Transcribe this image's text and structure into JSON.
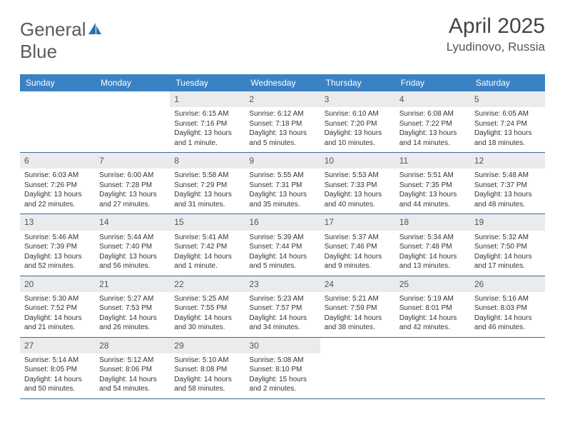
{
  "logo": {
    "word1": "General",
    "word2": "Blue"
  },
  "title": "April 2025",
  "location": "Lyudinovo, Russia",
  "colors": {
    "header_bg": "#3b82c4",
    "header_text": "#ffffff",
    "daynum_bg": "#e9ebed",
    "border": "#3b6a9a",
    "logo_blue": "#2f6fab"
  },
  "day_names": [
    "Sunday",
    "Monday",
    "Tuesday",
    "Wednesday",
    "Thursday",
    "Friday",
    "Saturday"
  ],
  "weeks": [
    [
      null,
      null,
      {
        "n": "1",
        "sr": "Sunrise: 6:15 AM",
        "ss": "Sunset: 7:16 PM",
        "d1": "Daylight: 13 hours",
        "d2": "and 1 minute."
      },
      {
        "n": "2",
        "sr": "Sunrise: 6:12 AM",
        "ss": "Sunset: 7:18 PM",
        "d1": "Daylight: 13 hours",
        "d2": "and 5 minutes."
      },
      {
        "n": "3",
        "sr": "Sunrise: 6:10 AM",
        "ss": "Sunset: 7:20 PM",
        "d1": "Daylight: 13 hours",
        "d2": "and 10 minutes."
      },
      {
        "n": "4",
        "sr": "Sunrise: 6:08 AM",
        "ss": "Sunset: 7:22 PM",
        "d1": "Daylight: 13 hours",
        "d2": "and 14 minutes."
      },
      {
        "n": "5",
        "sr": "Sunrise: 6:05 AM",
        "ss": "Sunset: 7:24 PM",
        "d1": "Daylight: 13 hours",
        "d2": "and 18 minutes."
      }
    ],
    [
      {
        "n": "6",
        "sr": "Sunrise: 6:03 AM",
        "ss": "Sunset: 7:26 PM",
        "d1": "Daylight: 13 hours",
        "d2": "and 22 minutes."
      },
      {
        "n": "7",
        "sr": "Sunrise: 6:00 AM",
        "ss": "Sunset: 7:28 PM",
        "d1": "Daylight: 13 hours",
        "d2": "and 27 minutes."
      },
      {
        "n": "8",
        "sr": "Sunrise: 5:58 AM",
        "ss": "Sunset: 7:29 PM",
        "d1": "Daylight: 13 hours",
        "d2": "and 31 minutes."
      },
      {
        "n": "9",
        "sr": "Sunrise: 5:55 AM",
        "ss": "Sunset: 7:31 PM",
        "d1": "Daylight: 13 hours",
        "d2": "and 35 minutes."
      },
      {
        "n": "10",
        "sr": "Sunrise: 5:53 AM",
        "ss": "Sunset: 7:33 PM",
        "d1": "Daylight: 13 hours",
        "d2": "and 40 minutes."
      },
      {
        "n": "11",
        "sr": "Sunrise: 5:51 AM",
        "ss": "Sunset: 7:35 PM",
        "d1": "Daylight: 13 hours",
        "d2": "and 44 minutes."
      },
      {
        "n": "12",
        "sr": "Sunrise: 5:48 AM",
        "ss": "Sunset: 7:37 PM",
        "d1": "Daylight: 13 hours",
        "d2": "and 48 minutes."
      }
    ],
    [
      {
        "n": "13",
        "sr": "Sunrise: 5:46 AM",
        "ss": "Sunset: 7:39 PM",
        "d1": "Daylight: 13 hours",
        "d2": "and 52 minutes."
      },
      {
        "n": "14",
        "sr": "Sunrise: 5:44 AM",
        "ss": "Sunset: 7:40 PM",
        "d1": "Daylight: 13 hours",
        "d2": "and 56 minutes."
      },
      {
        "n": "15",
        "sr": "Sunrise: 5:41 AM",
        "ss": "Sunset: 7:42 PM",
        "d1": "Daylight: 14 hours",
        "d2": "and 1 minute."
      },
      {
        "n": "16",
        "sr": "Sunrise: 5:39 AM",
        "ss": "Sunset: 7:44 PM",
        "d1": "Daylight: 14 hours",
        "d2": "and 5 minutes."
      },
      {
        "n": "17",
        "sr": "Sunrise: 5:37 AM",
        "ss": "Sunset: 7:46 PM",
        "d1": "Daylight: 14 hours",
        "d2": "and 9 minutes."
      },
      {
        "n": "18",
        "sr": "Sunrise: 5:34 AM",
        "ss": "Sunset: 7:48 PM",
        "d1": "Daylight: 14 hours",
        "d2": "and 13 minutes."
      },
      {
        "n": "19",
        "sr": "Sunrise: 5:32 AM",
        "ss": "Sunset: 7:50 PM",
        "d1": "Daylight: 14 hours",
        "d2": "and 17 minutes."
      }
    ],
    [
      {
        "n": "20",
        "sr": "Sunrise: 5:30 AM",
        "ss": "Sunset: 7:52 PM",
        "d1": "Daylight: 14 hours",
        "d2": "and 21 minutes."
      },
      {
        "n": "21",
        "sr": "Sunrise: 5:27 AM",
        "ss": "Sunset: 7:53 PM",
        "d1": "Daylight: 14 hours",
        "d2": "and 26 minutes."
      },
      {
        "n": "22",
        "sr": "Sunrise: 5:25 AM",
        "ss": "Sunset: 7:55 PM",
        "d1": "Daylight: 14 hours",
        "d2": "and 30 minutes."
      },
      {
        "n": "23",
        "sr": "Sunrise: 5:23 AM",
        "ss": "Sunset: 7:57 PM",
        "d1": "Daylight: 14 hours",
        "d2": "and 34 minutes."
      },
      {
        "n": "24",
        "sr": "Sunrise: 5:21 AM",
        "ss": "Sunset: 7:59 PM",
        "d1": "Daylight: 14 hours",
        "d2": "and 38 minutes."
      },
      {
        "n": "25",
        "sr": "Sunrise: 5:19 AM",
        "ss": "Sunset: 8:01 PM",
        "d1": "Daylight: 14 hours",
        "d2": "and 42 minutes."
      },
      {
        "n": "26",
        "sr": "Sunrise: 5:16 AM",
        "ss": "Sunset: 8:03 PM",
        "d1": "Daylight: 14 hours",
        "d2": "and 46 minutes."
      }
    ],
    [
      {
        "n": "27",
        "sr": "Sunrise: 5:14 AM",
        "ss": "Sunset: 8:05 PM",
        "d1": "Daylight: 14 hours",
        "d2": "and 50 minutes."
      },
      {
        "n": "28",
        "sr": "Sunrise: 5:12 AM",
        "ss": "Sunset: 8:06 PM",
        "d1": "Daylight: 14 hours",
        "d2": "and 54 minutes."
      },
      {
        "n": "29",
        "sr": "Sunrise: 5:10 AM",
        "ss": "Sunset: 8:08 PM",
        "d1": "Daylight: 14 hours",
        "d2": "and 58 minutes."
      },
      {
        "n": "30",
        "sr": "Sunrise: 5:08 AM",
        "ss": "Sunset: 8:10 PM",
        "d1": "Daylight: 15 hours",
        "d2": "and 2 minutes."
      },
      null,
      null,
      null
    ]
  ]
}
